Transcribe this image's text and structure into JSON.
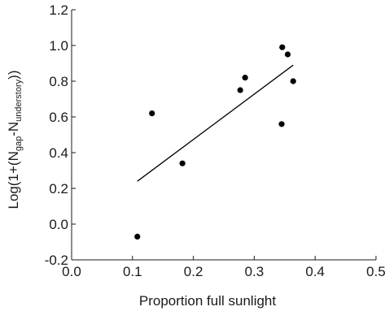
{
  "chart_data": {
    "type": "scatter",
    "title": "",
    "xlabel": "Proportion full sunlight",
    "ylabel": {
      "prefix": "Log(1+(N",
      "sub1": "gap",
      "mid": "-N",
      "sub2": "understory",
      "suffix": "))"
    },
    "xlim": [
      0.0,
      0.5
    ],
    "ylim": [
      -0.2,
      1.2
    ],
    "x_ticks": [
      "0.0",
      "0.1",
      "0.2",
      "0.3",
      "0.4",
      "0.5"
    ],
    "y_ticks": [
      "-0.2",
      "0.0",
      "0.2",
      "0.4",
      "0.6",
      "0.8",
      "1.0",
      "1.2"
    ],
    "grid": false,
    "points": [
      {
        "x": 0.108,
        "y": -0.07
      },
      {
        "x": 0.132,
        "y": 0.62
      },
      {
        "x": 0.182,
        "y": 0.34
      },
      {
        "x": 0.277,
        "y": 0.75
      },
      {
        "x": 0.285,
        "y": 0.82
      },
      {
        "x": 0.345,
        "y": 0.56
      },
      {
        "x": 0.346,
        "y": 0.99
      },
      {
        "x": 0.355,
        "y": 0.95
      },
      {
        "x": 0.364,
        "y": 0.8
      }
    ],
    "trendline": {
      "x": [
        0.108,
        0.364
      ],
      "y": [
        0.24,
        0.89
      ]
    }
  }
}
